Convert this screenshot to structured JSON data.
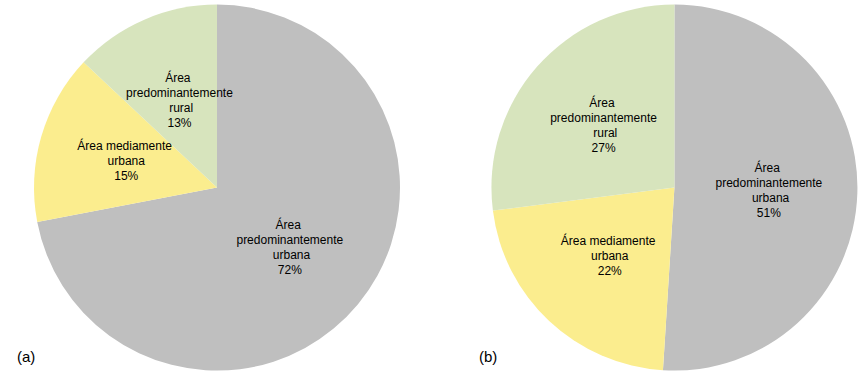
{
  "chart_data": [
    {
      "type": "pie",
      "title": "(a)",
      "categories": [
        "Área predominantemente urbana",
        "Área mediamente urbana",
        "Área predominantemente rural"
      ],
      "values": [
        72,
        15,
        13
      ],
      "value_labels": [
        "72%",
        "15%",
        "13%"
      ],
      "colors": [
        "#bfbfbf",
        "#fbed8e",
        "#d7e4bd"
      ],
      "data_labels": true
    },
    {
      "type": "pie",
      "title": "(b)",
      "categories": [
        "Área predominantemente urbana",
        "Área mediamente urbana",
        "Área predominantemente rural"
      ],
      "values": [
        51,
        22,
        27
      ],
      "value_labels": [
        "51%",
        "22%",
        "27%"
      ],
      "colors": [
        "#bfbfbf",
        "#fbed8e",
        "#d7e4bd"
      ],
      "data_labels": true
    }
  ]
}
